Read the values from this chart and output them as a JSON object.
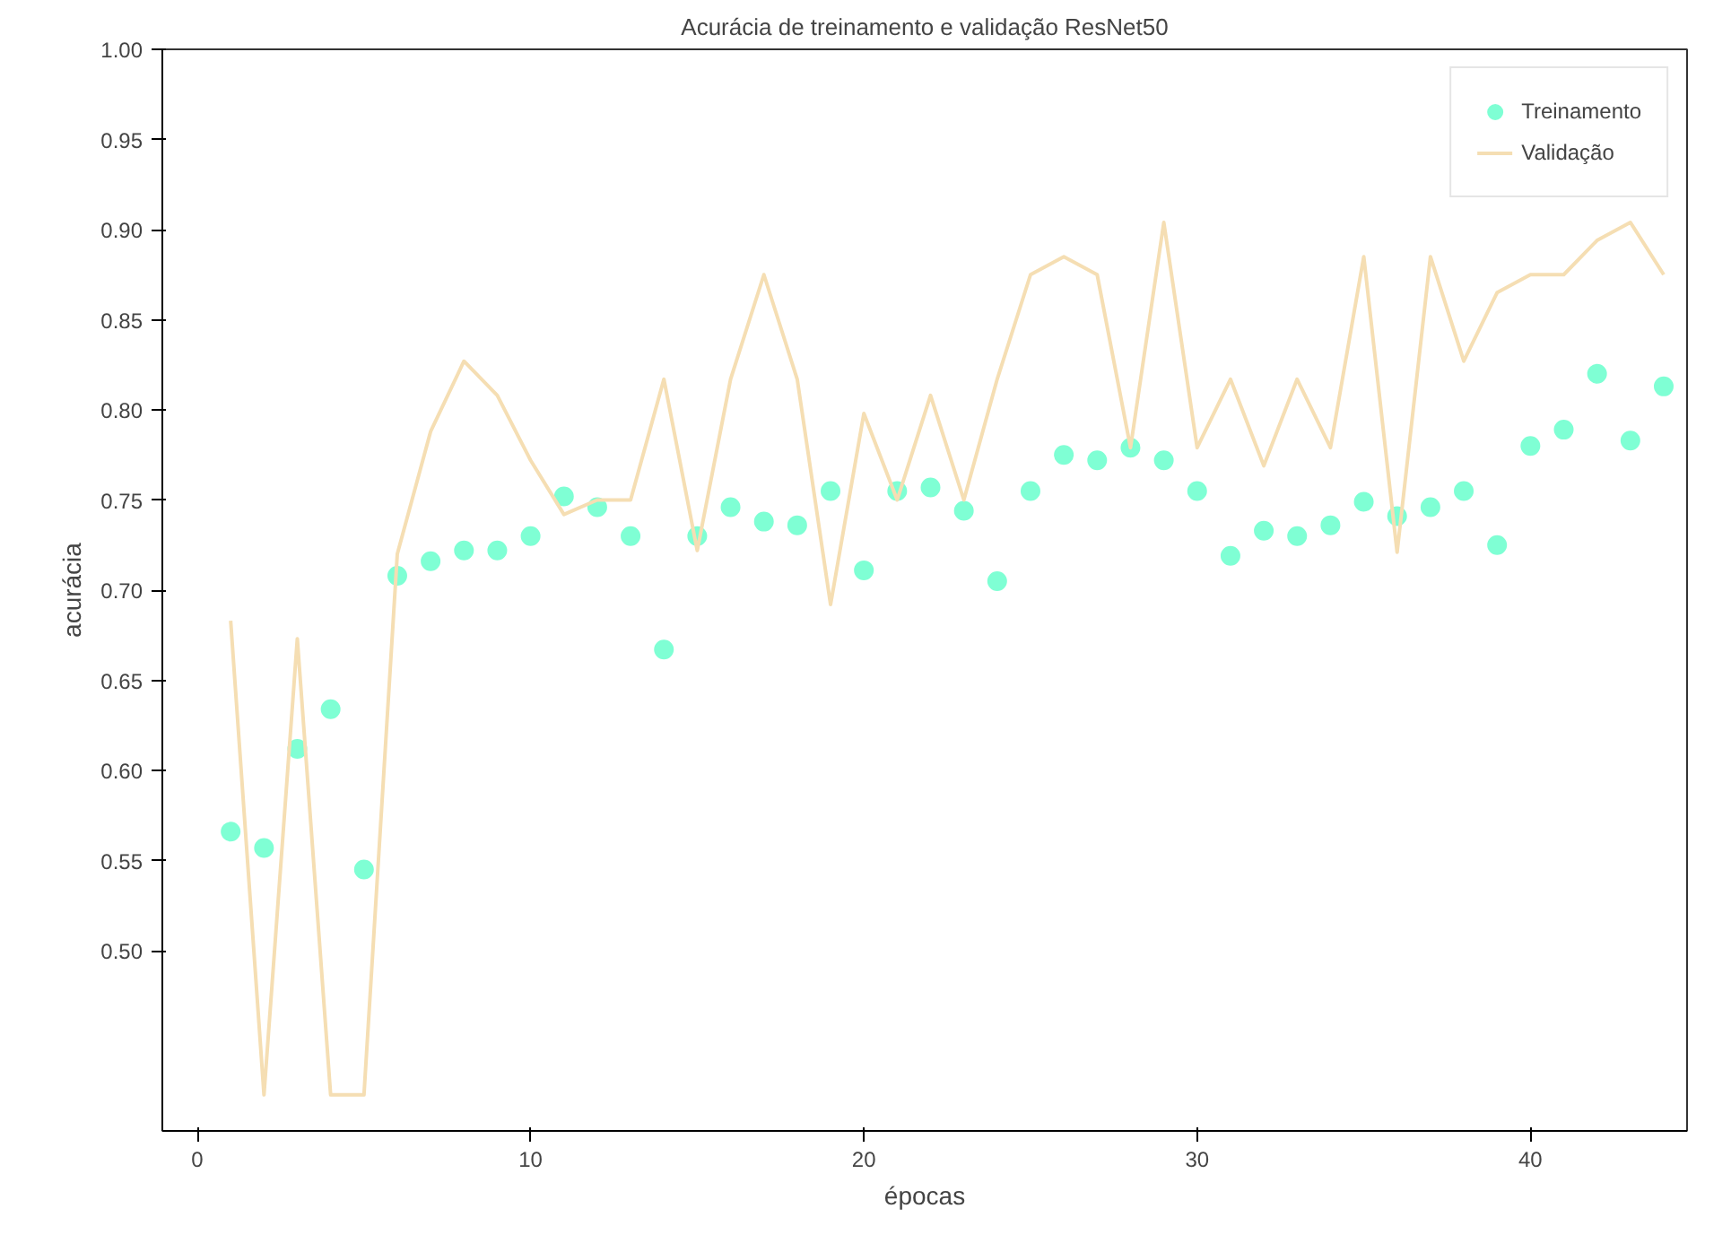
{
  "chart_data": {
    "type": "scatter",
    "title": "Acurácia de treinamento e validação ResNet50",
    "xlabel": "épocas",
    "ylabel": "acurácia",
    "x": [
      1,
      2,
      3,
      4,
      5,
      6,
      7,
      8,
      9,
      10,
      11,
      12,
      13,
      14,
      15,
      16,
      17,
      18,
      19,
      20,
      21,
      22,
      23,
      24,
      25,
      26,
      27,
      28,
      29,
      30,
      31,
      32,
      33,
      34,
      35,
      36,
      37,
      38,
      39,
      40,
      41,
      42,
      43,
      44
    ],
    "series": [
      {
        "name": "Treinamento",
        "marker": "circle",
        "color": "#7fffd4",
        "values": [
          0.566,
          0.557,
          0.612,
          0.634,
          0.545,
          0.708,
          0.716,
          0.722,
          0.722,
          0.73,
          0.752,
          0.746,
          0.73,
          0.667,
          0.73,
          0.746,
          0.738,
          0.736,
          0.755,
          0.711,
          0.755,
          0.757,
          0.744,
          0.705,
          0.755,
          0.775,
          0.772,
          0.779,
          0.772,
          0.755,
          0.719,
          0.733,
          0.73,
          0.736,
          0.749,
          0.741,
          0.746,
          0.755,
          0.725,
          0.78,
          0.789,
          0.82,
          0.783,
          0.813
        ]
      },
      {
        "name": "Validação",
        "type": "line",
        "color": "#f5deb3",
        "values": [
          0.683,
          0.42,
          0.673,
          0.42,
          0.42,
          0.72,
          0.788,
          0.827,
          0.808,
          0.772,
          0.742,
          0.75,
          0.75,
          0.817,
          0.722,
          0.817,
          0.875,
          0.817,
          0.692,
          0.798,
          0.75,
          0.808,
          0.75,
          0.817,
          0.875,
          0.885,
          0.875,
          0.779,
          0.904,
          0.779,
          0.817,
          0.769,
          0.817,
          0.779,
          0.885,
          0.721,
          0.885,
          0.827,
          0.865,
          0.875,
          0.875,
          0.894,
          0.904,
          0.875
        ]
      }
    ],
    "xlim": [
      -1.05,
      44.7
    ],
    "ylim": [
      0.4,
      1.0
    ],
    "xticks": [
      0,
      10,
      20,
      30,
      40
    ],
    "yticks": [
      {
        "value": 0.5,
        "label": "0.50"
      },
      {
        "value": 0.55,
        "label": "0.55"
      },
      {
        "value": 0.6,
        "label": "0.60"
      },
      {
        "value": 0.65,
        "label": "0.65"
      },
      {
        "value": 0.7,
        "label": "0.70"
      },
      {
        "value": 0.75,
        "label": "0.75"
      },
      {
        "value": 0.8,
        "label": "0.80"
      },
      {
        "value": 0.85,
        "label": "0.85"
      },
      {
        "value": 0.9,
        "label": "0.90"
      },
      {
        "value": 0.95,
        "label": "0.95"
      },
      {
        "value": 1.0,
        "label": "1.00"
      }
    ],
    "grid": false,
    "legend": "top right"
  }
}
